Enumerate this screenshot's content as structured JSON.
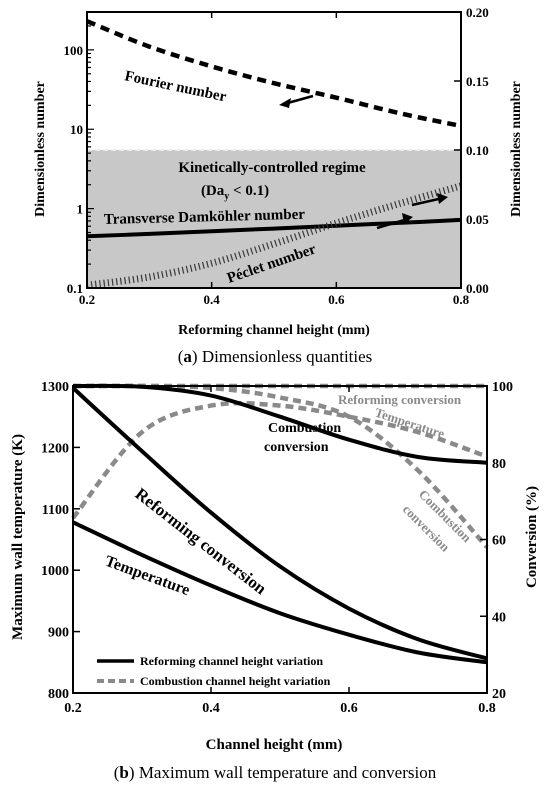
{
  "chart_data": [
    {
      "id": "a",
      "type": "line",
      "caption_letter": "a",
      "caption_text": "Dimensionless quantities",
      "xlabel": "Reforming channel height (mm)",
      "ylabel_left": "Dimensionless number",
      "ylabel_right": "Dimensionless number",
      "xlim": [
        0.2,
        0.8
      ],
      "ylim_left": [
        0.1,
        300
      ],
      "yscale_left": "log",
      "ylim_right": [
        0,
        0.2
      ],
      "x_ticks": [
        "0.2",
        "0.4",
        "0.6",
        "0.8"
      ],
      "y_ticks_left": [
        {
          "value": 0.1,
          "label": "0.1"
        },
        {
          "value": 1,
          "label": "1"
        },
        {
          "value": 10,
          "label": "10"
        },
        {
          "value": 100,
          "label": "100"
        }
      ],
      "y_ticks_right": [
        "0.00",
        "0.05",
        "0.10",
        "0.15",
        "0.20"
      ],
      "region": {
        "label_line1": "Kinetically-controlled regime",
        "label_line2_pre": "(Da",
        "label_line2_sub": "y",
        "label_line2_post": " < 0.1)",
        "upper_left_value": 5.5,
        "color": "#c8c8c8"
      },
      "series": [
        {
          "name": "Fourier number",
          "axis": "left",
          "style": "dashed",
          "x": [
            0.2,
            0.3,
            0.4,
            0.5,
            0.6,
            0.7,
            0.8
          ],
          "y": [
            230,
            110,
            62,
            38,
            25,
            16,
            11
          ]
        },
        {
          "name": "Transverse Damköhler number",
          "axis": "left",
          "style": "solid",
          "x": [
            0.2,
            0.3,
            0.4,
            0.5,
            0.6,
            0.7,
            0.8
          ],
          "y": [
            0.45,
            0.48,
            0.52,
            0.56,
            0.61,
            0.66,
            0.72
          ]
        },
        {
          "name": "Péclet number",
          "axis": "right",
          "style": "dotted",
          "x": [
            0.2,
            0.3,
            0.4,
            0.5,
            0.6,
            0.7,
            0.8
          ],
          "y": [
            0.002,
            0.008,
            0.018,
            0.032,
            0.047,
            0.061,
            0.074
          ]
        }
      ]
    },
    {
      "id": "b",
      "type": "line",
      "caption_letter": "b",
      "caption_text": "Maximum wall temperature and conversion",
      "xlabel": "Channel height (mm)",
      "ylabel_left": "Maximum wall temperature (K)",
      "ylabel_right": "Conversion (%)",
      "xlim": [
        0.2,
        0.8
      ],
      "ylim_left": [
        800,
        1300
      ],
      "ylim_right": [
        20,
        100
      ],
      "x_ticks": [
        "0.2",
        "0.4",
        "0.6",
        "0.8"
      ],
      "y_ticks_left": [
        "800",
        "900",
        "1000",
        "1100",
        "1200",
        "1300"
      ],
      "y_ticks_right": [
        "20",
        "40",
        "60",
        "80",
        "100"
      ],
      "legend": {
        "placement": "bottom-left",
        "entries": [
          {
            "label": "Reforming channel height variation",
            "style": "solid"
          },
          {
            "label": "Combustion channel height variation",
            "style": "dashed"
          }
        ]
      },
      "series": [
        {
          "name": "Temperature",
          "group": "reforming",
          "axis": "left",
          "x": [
            0.2,
            0.3,
            0.4,
            0.5,
            0.6,
            0.7,
            0.8
          ],
          "y": [
            1078,
            1025,
            975,
            930,
            895,
            866,
            850
          ]
        },
        {
          "name": "Reforming conversion",
          "group": "reforming",
          "axis": "right",
          "x": [
            0.2,
            0.3,
            0.4,
            0.5,
            0.6,
            0.7,
            0.8
          ],
          "y": [
            99.5,
            83,
            67,
            53,
            42,
            34,
            29
          ]
        },
        {
          "name": "Combustion conversion",
          "group": "reforming",
          "axis": "right",
          "x": [
            0.2,
            0.3,
            0.4,
            0.5,
            0.6,
            0.7,
            0.8
          ],
          "y": [
            100,
            99.8,
            97.5,
            92,
            86,
            81.5,
            80
          ]
        },
        {
          "name": "Temperature",
          "group": "combustion",
          "axis": "left",
          "x": [
            0.2,
            0.3,
            0.4,
            0.5,
            0.6,
            0.7,
            0.8
          ],
          "y": [
            1085,
            1225,
            1268,
            1268,
            1250,
            1225,
            1185
          ]
        },
        {
          "name": "Reforming conversion",
          "group": "combustion",
          "axis": "right",
          "x": [
            0.2,
            0.4,
            0.6,
            0.8
          ],
          "y": [
            100,
            100,
            100,
            100
          ]
        },
        {
          "name": "Combustion conversion",
          "group": "combustion",
          "axis": "right",
          "x": [
            0.2,
            0.3,
            0.4,
            0.5,
            0.6,
            0.7,
            0.8
          ],
          "y": [
            100,
            100,
            99.5,
            97,
            92,
            78,
            58
          ]
        }
      ],
      "labels": {
        "temperature_reforming": "Temperature",
        "reforming_conversion_reforming": "Reforming conversion",
        "combustion_conversion_reforming_l1": "Combustion",
        "combustion_conversion_reforming_l2": "conversion",
        "reforming_conversion_combustion": "Reforming conversion",
        "temperature_combustion": "Temperature",
        "combustion_conversion_combustion_l1": "Combustion",
        "combustion_conversion_combustion_l2": "conversion"
      }
    }
  ],
  "colors": {
    "solid": "#000000",
    "gray_series": "#8a8a8a",
    "region": "#c8c8c8"
  }
}
